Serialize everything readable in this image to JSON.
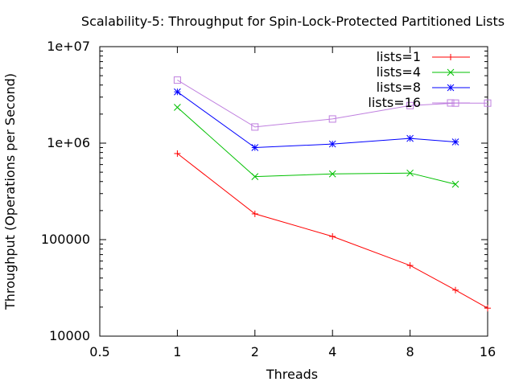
{
  "chart_data": {
    "type": "line",
    "title": "Scalability-5: Throughput for Spin-Lock-Protected Partitioned Lists",
    "xlabel": "Threads",
    "ylabel": "Throughput (Operations per Second)",
    "x_scale": "log2",
    "y_scale": "log10",
    "xlim": [
      0.5,
      16
    ],
    "ylim": [
      10000,
      10000000
    ],
    "x_ticks": [
      0.5,
      1,
      2,
      4,
      8,
      16
    ],
    "x_tick_labels": [
      "0.5",
      "1",
      "2",
      "4",
      "8",
      "16"
    ],
    "y_ticks": [
      10000,
      100000,
      1000000,
      10000000
    ],
    "y_tick_labels": [
      "10000",
      "100000",
      "1e+06",
      "1e+07"
    ],
    "grid": false,
    "legend_position": "top-right",
    "series": [
      {
        "name": "lists=1",
        "color": "#ff0000",
        "marker": "plus",
        "x": [
          1,
          2,
          4,
          8,
          12,
          16
        ],
        "y": [
          780000,
          185000,
          108000,
          54000,
          30000,
          19500
        ]
      },
      {
        "name": "lists=4",
        "color": "#00c000",
        "marker": "cross",
        "x": [
          1,
          2,
          4,
          8,
          12
        ],
        "y": [
          2350000,
          450000,
          480000,
          490000,
          375000
        ]
      },
      {
        "name": "lists=8",
        "color": "#0000ff",
        "marker": "star",
        "x": [
          1,
          2,
          4,
          8,
          12
        ],
        "y": [
          3400000,
          900000,
          980000,
          1120000,
          1030000
        ]
      },
      {
        "name": "lists=16",
        "color": "#bf7fdf",
        "marker": "box",
        "x": [
          1,
          2,
          4,
          8,
          12,
          16
        ],
        "y": [
          4500000,
          1470000,
          1780000,
          2450000,
          2600000,
          2600000
        ]
      }
    ]
  }
}
